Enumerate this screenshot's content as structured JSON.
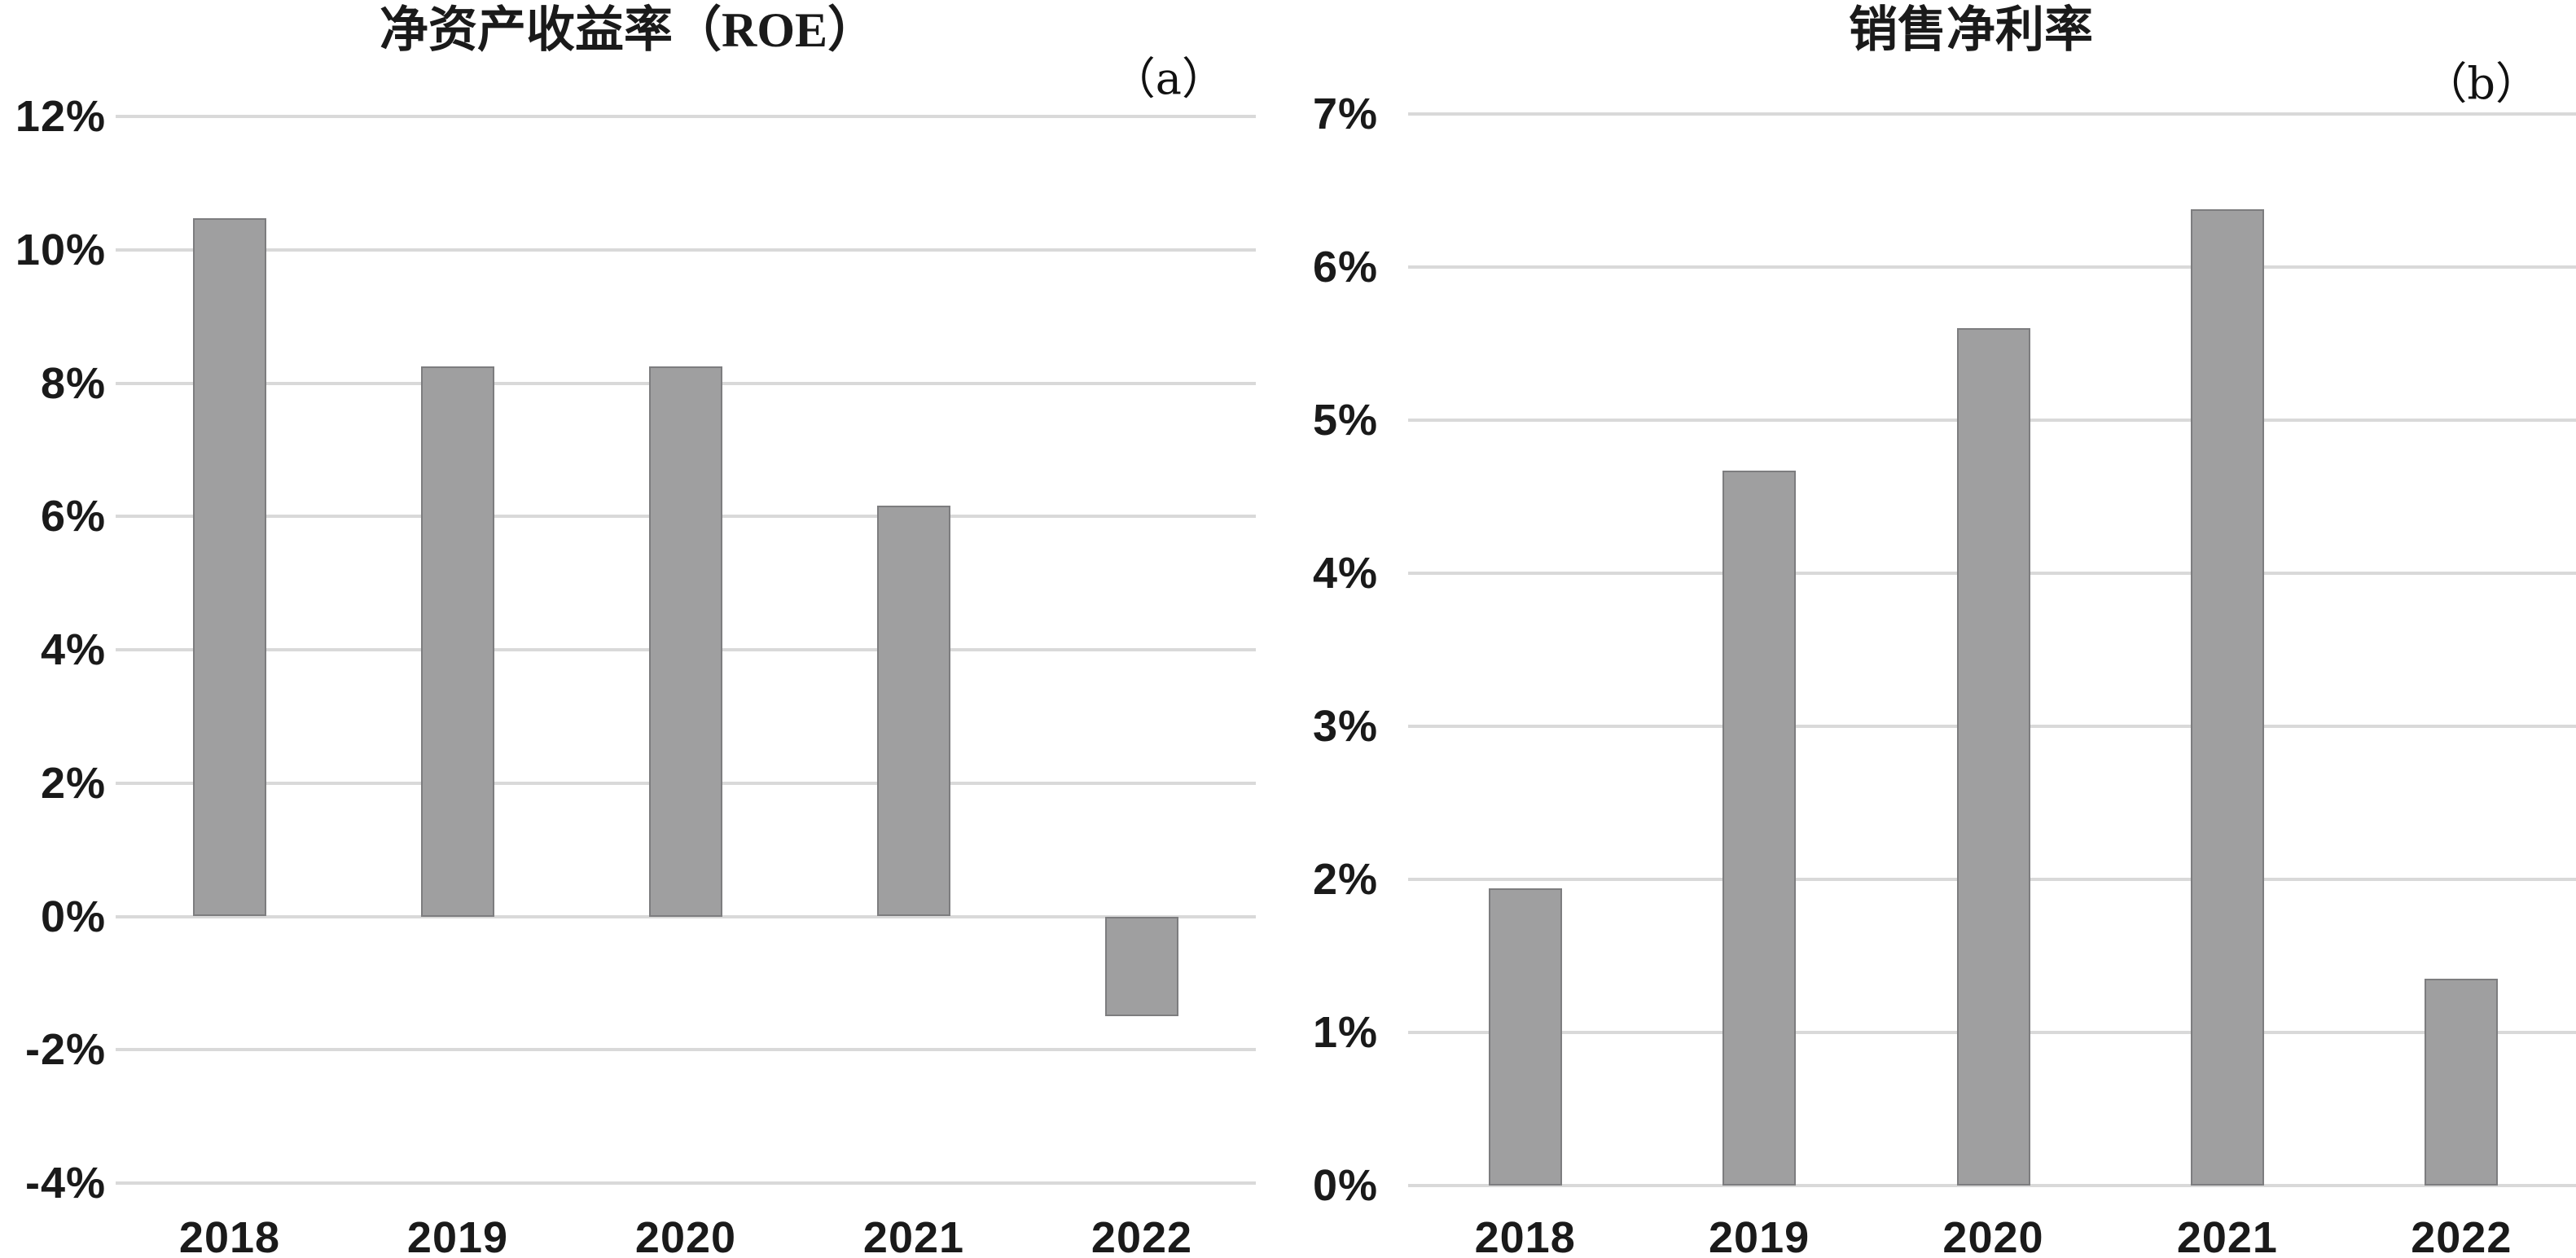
{
  "colors": {
    "bar_fill": "#9f9fa0",
    "bar_border": "#7d7d7f",
    "gridline": "#d9d9d9",
    "text": "#1a1a1a"
  },
  "chart_data": [
    {
      "type": "bar",
      "title": "净资产收益率（ROE）",
      "panel_label": "（a）",
      "categories": [
        "2018",
        "2019",
        "2020",
        "2021",
        "2022"
      ],
      "values": [
        10.47,
        8.25,
        8.25,
        6.16,
        -1.5
      ],
      "unit": "%",
      "xlabel": "",
      "ylabel": "",
      "ylim": [
        -4,
        12
      ],
      "y_step": 2,
      "y_tick_labels": [
        "12%",
        "10%",
        "8%",
        "6%",
        "4%",
        "2%",
        "0%",
        "-2%",
        "-4%"
      ],
      "grid": true,
      "legend": false
    },
    {
      "type": "bar",
      "title": "销售净利率",
      "panel_label": "（b）",
      "categories": [
        "2018",
        "2019",
        "2020",
        "2021",
        "2022"
      ],
      "values": [
        1.94,
        4.67,
        5.6,
        6.38,
        1.35
      ],
      "unit": "%",
      "xlabel": "",
      "ylabel": "",
      "ylim": [
        0,
        7
      ],
      "y_step": 1,
      "y_tick_labels": [
        "7%",
        "6%",
        "5%",
        "4%",
        "3%",
        "2%",
        "1%",
        "0%"
      ],
      "grid": true,
      "legend": false
    }
  ]
}
